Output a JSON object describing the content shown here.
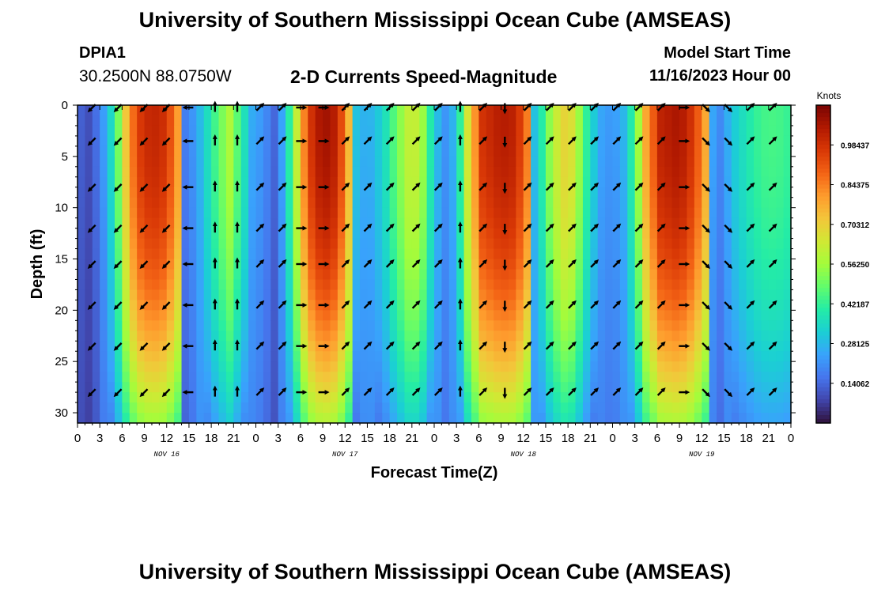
{
  "header": {
    "title": "University of Southern Mississippi Ocean Cube (AMSEAS)",
    "station_id": "DPIA1",
    "station_coords": "30.2500N  88.0750W",
    "plot_title": "2-D Currents Speed-Magnitude",
    "model_start_label": "Model Start Time",
    "model_start_value": "11/16/2023 Hour 00"
  },
  "footer": {
    "title": "University of Southern Mississippi Ocean Cube (AMSEAS)"
  },
  "chart_data": {
    "type": "heatmap",
    "title": "2-D Currents Speed-Magnitude",
    "xlabel": "Forecast Time(Z)",
    "ylabel": "Depth (ft)",
    "x_range_hours": [
      0,
      96
    ],
    "y_range_ft": [
      0,
      31
    ],
    "y_ticks": [
      "0",
      "5",
      "10",
      "15",
      "20",
      "25",
      "30"
    ],
    "x_ticks": [
      "0",
      "3",
      "6",
      "9",
      "12",
      "15",
      "18",
      "21",
      "0",
      "3",
      "6",
      "9",
      "12",
      "15",
      "18",
      "21",
      "0",
      "3",
      "6",
      "9",
      "12",
      "15",
      "18",
      "21",
      "0",
      "3",
      "6",
      "9",
      "12",
      "15",
      "18",
      "21",
      "0"
    ],
    "day_labels": [
      "NOV 16",
      "NOV 17",
      "NOV 18",
      "NOV 19"
    ],
    "colorbar": {
      "label": "Knots",
      "ticks": [
        "0.14062",
        "0.28125",
        "0.42187",
        "0.56250",
        "0.70312",
        "0.84375",
        "0.98437"
      ],
      "range": [
        0,
        1.125
      ]
    },
    "vector_depths_ft": [
      0,
      3.5,
      8,
      12,
      15.5,
      19.5,
      23.5,
      28
    ],
    "vector_hours": [
      2,
      5.5,
      9,
      12,
      15,
      18.5,
      21.5,
      24.5,
      27.5,
      30,
      33,
      36,
      39,
      42,
      45.5,
      48.5,
      51.5,
      54.5,
      57.5,
      60.5,
      63.5,
      66.5,
      69.5,
      72.5,
      75.5,
      78.5,
      81.5,
      84.5,
      87.5,
      90.5,
      93.5
    ],
    "vector_direction_by_hour_deg": [
      225,
      225,
      225,
      225,
      270,
      0,
      0,
      45,
      45,
      90,
      90,
      45,
      45,
      45,
      45,
      45,
      0,
      45,
      180,
      45,
      45,
      45,
      45,
      45,
      45,
      45,
      90,
      135,
      135,
      45,
      45
    ],
    "speed_profile_by_hour": [
      {
        "h": 0,
        "s": 0.14
      },
      {
        "h": 1.5,
        "s": 0.1
      },
      {
        "h": 3,
        "s": 0.18
      },
      {
        "h": 5,
        "s": 0.4
      },
      {
        "h": 6.5,
        "s": 0.72
      },
      {
        "h": 8,
        "s": 0.95
      },
      {
        "h": 10,
        "s": 1.02
      },
      {
        "h": 12,
        "s": 0.98
      },
      {
        "h": 13.5,
        "s": 0.8
      },
      {
        "h": 14.5,
        "s": 0.18
      },
      {
        "h": 15.5,
        "s": 0.22
      },
      {
        "h": 17,
        "s": 0.32
      },
      {
        "h": 19,
        "s": 0.48
      },
      {
        "h": 20.5,
        "s": 0.58
      },
      {
        "h": 22,
        "s": 0.42
      },
      {
        "h": 23.5,
        "s": 0.26
      },
      {
        "h": 25,
        "s": 0.22
      },
      {
        "h": 26.5,
        "s": 0.14
      },
      {
        "h": 28,
        "s": 0.3
      },
      {
        "h": 29.5,
        "s": 0.62
      },
      {
        "h": 31,
        "s": 0.95
      },
      {
        "h": 33,
        "s": 1.08
      },
      {
        "h": 35,
        "s": 1.02
      },
      {
        "h": 36.5,
        "s": 0.75
      },
      {
        "h": 37.5,
        "s": 0.3
      },
      {
        "h": 39,
        "s": 0.26
      },
      {
        "h": 41,
        "s": 0.33
      },
      {
        "h": 43,
        "s": 0.5
      },
      {
        "h": 45,
        "s": 0.65
      },
      {
        "h": 46.5,
        "s": 0.55
      },
      {
        "h": 48,
        "s": 0.32
      },
      {
        "h": 49.5,
        "s": 0.22
      },
      {
        "h": 51,
        "s": 0.3
      },
      {
        "h": 52.5,
        "s": 0.65
      },
      {
        "h": 54.5,
        "s": 0.98
      },
      {
        "h": 57,
        "s": 1.04
      },
      {
        "h": 59,
        "s": 1.02
      },
      {
        "h": 60.5,
        "s": 0.85
      },
      {
        "h": 61.5,
        "s": 0.3
      },
      {
        "h": 62.5,
        "s": 0.4
      },
      {
        "h": 64,
        "s": 0.6
      },
      {
        "h": 66,
        "s": 0.72
      },
      {
        "h": 67.5,
        "s": 0.55
      },
      {
        "h": 69,
        "s": 0.35
      },
      {
        "h": 70.5,
        "s": 0.25
      },
      {
        "h": 72,
        "s": 0.22
      },
      {
        "h": 73.5,
        "s": 0.28
      },
      {
        "h": 75,
        "s": 0.45
      },
      {
        "h": 76.5,
        "s": 0.78
      },
      {
        "h": 78.5,
        "s": 1.02
      },
      {
        "h": 81,
        "s": 1.06
      },
      {
        "h": 83,
        "s": 0.96
      },
      {
        "h": 84.5,
        "s": 0.78
      },
      {
        "h": 85.5,
        "s": 0.25
      },
      {
        "h": 86.5,
        "s": 0.2
      },
      {
        "h": 88,
        "s": 0.3
      },
      {
        "h": 90,
        "s": 0.38
      },
      {
        "h": 92,
        "s": 0.44
      },
      {
        "h": 94,
        "s": 0.45
      },
      {
        "h": 96,
        "s": 0.42
      }
    ]
  },
  "colors": {
    "colormap": [
      "#30123b",
      "#4145ab",
      "#4675ed",
      "#39a2fc",
      "#1bcfd4",
      "#24eca6",
      "#61fc6c",
      "#a4fc3b",
      "#d1e834",
      "#f3c63a",
      "#fe9b2d",
      "#f36315",
      "#d93806",
      "#b11901",
      "#7a0403"
    ],
    "vector": "#000000",
    "axis": "#000000"
  }
}
